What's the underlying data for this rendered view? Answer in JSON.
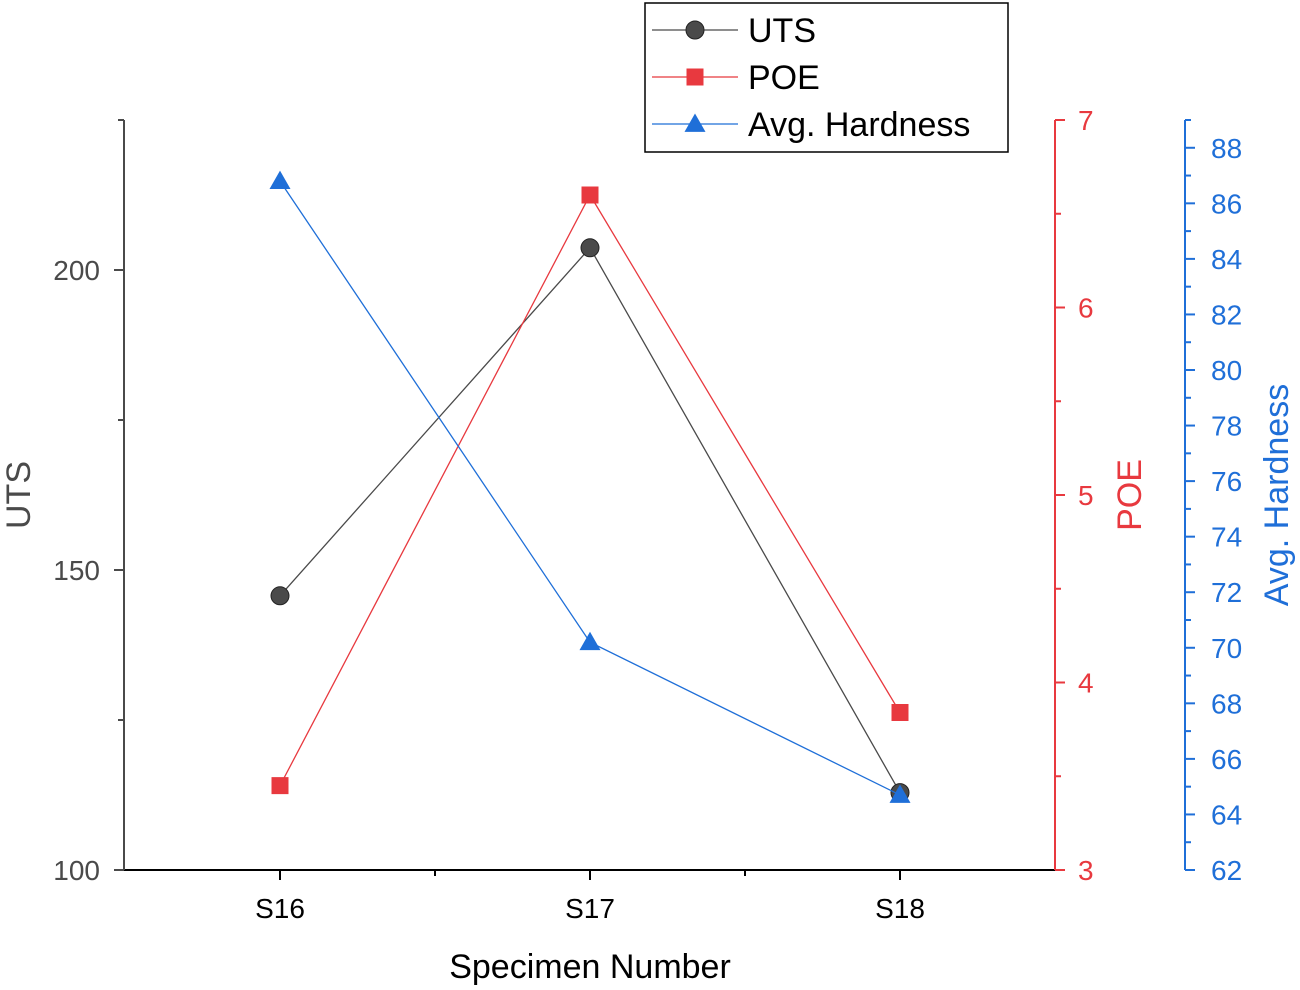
{
  "chart_data": {
    "type": "line",
    "categories": [
      "S16",
      "S17",
      "S18"
    ],
    "xlabel": "Specimen Number",
    "series": [
      {
        "name": "UTS",
        "axis": "left",
        "marker": "circle",
        "color": "#4a4a4a",
        "values": [
          145.7,
          203.7,
          112.9
        ]
      },
      {
        "name": "POE",
        "axis": "right1",
        "marker": "square",
        "color": "#e8393f",
        "values": [
          3.45,
          6.6,
          3.84
        ]
      },
      {
        "name": "Avg. Hardness",
        "axis": "right2",
        "marker": "triangle",
        "color": "#1f6fd8",
        "values": [
          86.8,
          70.2,
          64.7
        ]
      }
    ],
    "axes": {
      "left": {
        "label": "UTS",
        "range": [
          100,
          225
        ],
        "major_ticks": [
          100,
          150,
          200
        ],
        "minor_ticks": [
          125,
          175,
          225
        ],
        "color": "#4a4a4a"
      },
      "right1": {
        "label": "POE",
        "range": [
          3,
          7
        ],
        "major_ticks": [
          3,
          4,
          5,
          6,
          7
        ],
        "minor_ticks": [
          3.5,
          4.5,
          5.5,
          6.5
        ],
        "color": "#e8393f"
      },
      "right2": {
        "label": "Avg. Hardness",
        "range": [
          62,
          89
        ],
        "major_ticks": [
          62,
          64,
          66,
          68,
          70,
          72,
          74,
          76,
          78,
          80,
          82,
          84,
          86,
          88
        ],
        "minor_ticks": [
          63,
          65,
          67,
          69,
          71,
          73,
          75,
          77,
          79,
          81,
          83,
          85,
          87,
          89
        ],
        "color": "#1f6fd8"
      }
    },
    "legend": {
      "position": "top-center"
    }
  }
}
